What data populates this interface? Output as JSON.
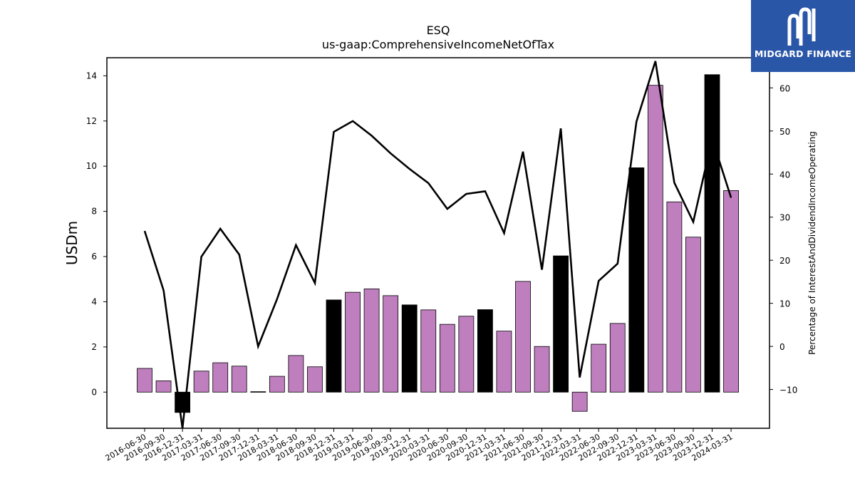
{
  "colors": {
    "accent": "#bf7fbf",
    "highlight": "#000000",
    "line": "#000000",
    "logo_bg": "#2a56a8"
  },
  "logo": {
    "text": "MIDGARD FINANCE",
    "icon": "midgard-logo-icon"
  },
  "chart_data": {
    "type": "bar",
    "title": "ESQ",
    "subtitle": "us-gaap:ComprehensiveIncomeNetOfTax",
    "ylabel": "USDm",
    "ylabel_right": "Percentage of InterestAndDividendIncomeOperating",
    "ylim": [
      -1.6,
      14.8
    ],
    "ylim_right": [
      -19,
      67
    ],
    "yticks": [
      0,
      2,
      4,
      6,
      8,
      10,
      12,
      14
    ],
    "yticks_right": [
      -10,
      0,
      10,
      20,
      30,
      40,
      50,
      60
    ],
    "categories": [
      "2016-06-30",
      "2016-09-30",
      "2016-12-31",
      "2017-03-31",
      "2017-06-30",
      "2017-09-30",
      "2017-12-31",
      "2018-03-31",
      "2018-06-30",
      "2018-09-30",
      "2018-12-31",
      "2019-03-31",
      "2019-06-30",
      "2019-09-30",
      "2019-12-31",
      "2020-03-31",
      "2020-06-30",
      "2020-09-30",
      "2020-12-31",
      "2021-03-31",
      "2021-06-30",
      "2021-09-30",
      "2021-12-31",
      "2022-03-31",
      "2022-06-30",
      "2022-09-30",
      "2022-12-31",
      "2023-03-31",
      "2023-06-30",
      "2023-09-30",
      "2023-12-31",
      "2024-03-31"
    ],
    "series": [
      {
        "type": "bar",
        "axis": "left",
        "values": [
          1.05,
          0.5,
          -0.9,
          0.93,
          1.3,
          1.15,
          0.02,
          0.7,
          1.62,
          1.12,
          4.08,
          4.42,
          4.57,
          4.27,
          3.86,
          3.64,
          3.0,
          3.36,
          3.65,
          2.7,
          4.9,
          2.02,
          6.03,
          -0.85,
          2.12,
          3.04,
          9.93,
          13.58,
          8.42,
          6.86,
          14.05,
          8.92
        ],
        "highlighted": [
          false,
          false,
          true,
          false,
          false,
          false,
          false,
          false,
          false,
          false,
          true,
          false,
          false,
          false,
          true,
          false,
          false,
          false,
          true,
          false,
          false,
          false,
          true,
          false,
          false,
          false,
          true,
          false,
          false,
          false,
          true,
          false
        ]
      },
      {
        "type": "line",
        "axis": "right",
        "values": [
          26.8,
          13.0,
          -19.0,
          20.8,
          27.3,
          21.3,
          0.0,
          11.0,
          23.5,
          14.7,
          49.8,
          52.3,
          48.9,
          44.8,
          41.2,
          37.9,
          31.9,
          35.4,
          36.0,
          26.3,
          45.2,
          17.8,
          50.6,
          -7.2,
          15.2,
          19.2,
          52.2,
          66.2,
          38.0,
          28.9,
          48.2,
          34.5
        ]
      }
    ]
  }
}
